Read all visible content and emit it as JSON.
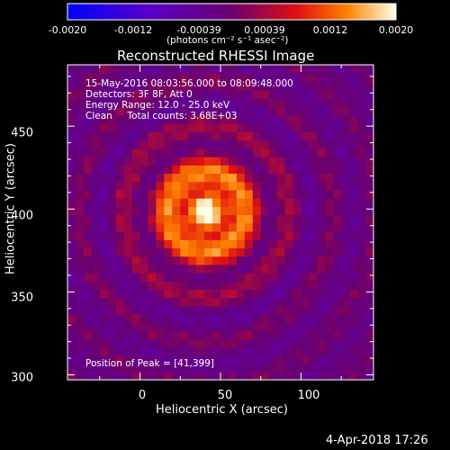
{
  "colorbar": {
    "min": -0.002,
    "max": 0.002,
    "ticks": [
      "-0.0020",
      "-0.0012",
      "-0.00039",
      "0.00039",
      "0.0012",
      "0.0020"
    ],
    "units_text": "(photons cm⁻² s⁻¹ asec⁻²)"
  },
  "title": "Reconstructed RHESSI Image",
  "info_lines": [
    "15-May-2016 08:03:56.000 to 08:09:48.000",
    "Detectors: 3F 8F, Att 0",
    "Energy Range: 12.0 - 25.0 keV",
    "Clean     Total counts: 3.68E+03"
  ],
  "peak_label": "Position of Peak = [41,399]",
  "footer_date": "4-Apr-2018 17:26",
  "chart_data": {
    "type": "heatmap",
    "title": "Reconstructed RHESSI Image",
    "xlabel": "Heliocentric X (arcsec)",
    "ylabel": "Heliocentric Y (arcsec)",
    "xlim": [
      -45,
      145
    ],
    "ylim": [
      297,
      487
    ],
    "xticks": [
      0,
      50,
      100
    ],
    "yticks": [
      300,
      350,
      400,
      450
    ],
    "peak": [
      41,
      399
    ],
    "colormap": "rainbow-blue-purple-red-yellow-white",
    "value_range": [
      -0.002,
      0.002
    ]
  }
}
